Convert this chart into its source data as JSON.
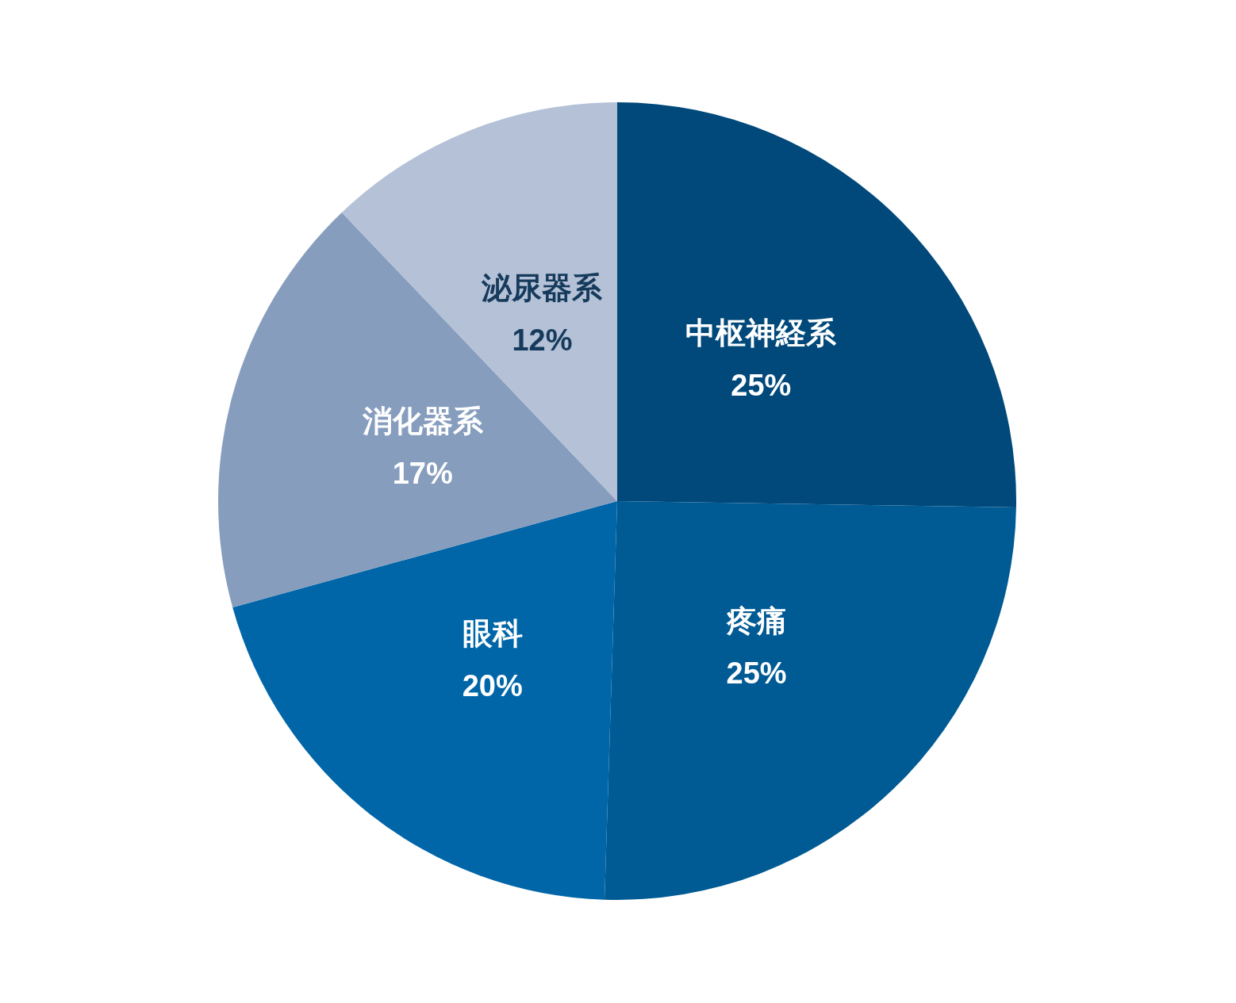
{
  "chart_data": {
    "type": "pie",
    "categories": [
      "中枢神経系",
      "疼痛",
      "眼科",
      "消化器系",
      "泌尿器系"
    ],
    "values": [
      25,
      25,
      20,
      17,
      12
    ],
    "value_labels": [
      "25%",
      "25%",
      "20%",
      "17%",
      "12%"
    ],
    "colors": [
      "#00497a",
      "#005a93",
      "#0066a8",
      "#869dbe",
      "#b4c1d6"
    ]
  }
}
